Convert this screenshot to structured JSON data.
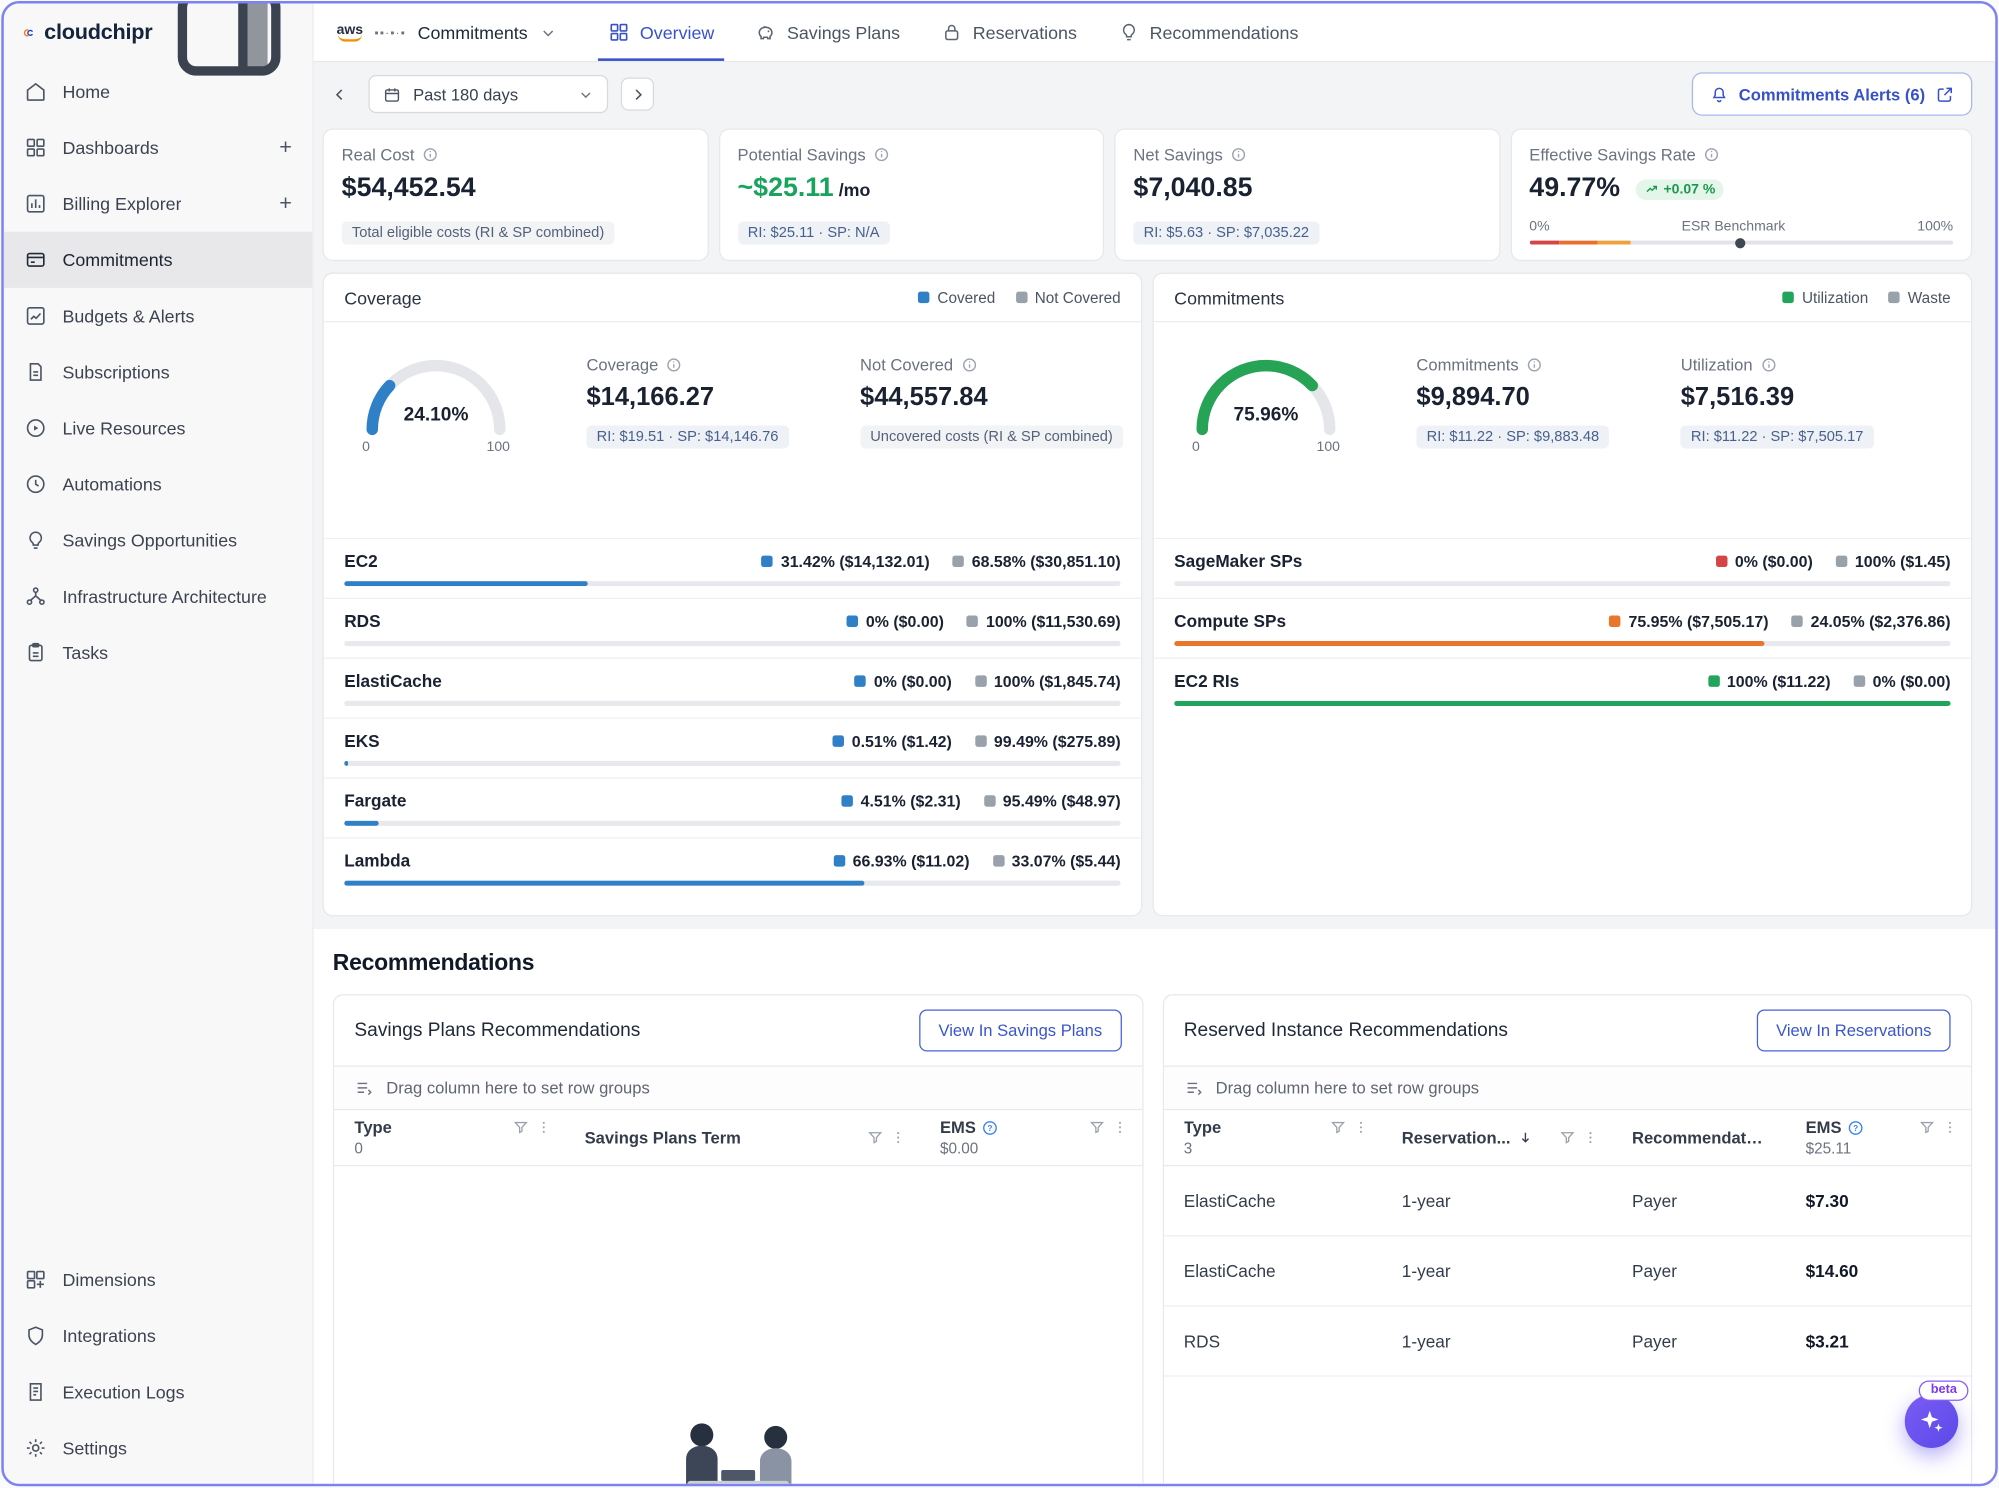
{
  "brand": {
    "name": "cloudchipr"
  },
  "sidebar": {
    "items": [
      {
        "label": "Home",
        "icon": "home"
      },
      {
        "label": "Dashboards",
        "icon": "dashboards",
        "trailing": "+"
      },
      {
        "label": "Billing Explorer",
        "icon": "billing",
        "trailing": "+"
      },
      {
        "label": "Commitments",
        "icon": "commitments",
        "active": true
      },
      {
        "label": "Budgets & Alerts",
        "icon": "budgets"
      },
      {
        "label": "Subscriptions",
        "icon": "subscriptions"
      },
      {
        "label": "Live Resources",
        "icon": "live"
      },
      {
        "label": "Automations",
        "icon": "automations"
      },
      {
        "label": "Savings Opportunities",
        "icon": "savings"
      },
      {
        "label": "Infrastructure Architecture",
        "icon": "infra"
      },
      {
        "label": "Tasks",
        "icon": "tasks"
      }
    ],
    "bottom_items": [
      {
        "label": "Dimensions",
        "icon": "dimensions"
      },
      {
        "label": "Integrations",
        "icon": "integrations"
      },
      {
        "label": "Execution Logs",
        "icon": "logs"
      },
      {
        "label": "Settings",
        "icon": "settings"
      }
    ]
  },
  "topbar": {
    "aws_label": "aws",
    "account_masked": "▪▪·▪·▪",
    "scope": "Commitments",
    "tabs": [
      {
        "label": "Overview",
        "icon": "overview",
        "active": true
      },
      {
        "label": "Savings Plans",
        "icon": "savings-plans"
      },
      {
        "label": "Reservations",
        "icon": "reservations"
      },
      {
        "label": "Recommendations",
        "icon": "recommendations"
      }
    ]
  },
  "toolbar": {
    "date_range": "Past 180 days",
    "alerts_label": "Commitments Alerts (6)"
  },
  "metrics": [
    {
      "label": "Real Cost",
      "value": "$54,452.54",
      "badge": "Total eligible costs (RI & SP combined)"
    },
    {
      "label": "Potential Savings",
      "value": "~$25.11",
      "value_suffix": "/mo",
      "value_color": "#18a45c",
      "badge": "RI: $25.11 · SP: N/A"
    },
    {
      "label": "Net Savings",
      "value": "$7,040.85",
      "badge": "RI: $5.63 · SP: $7,035.22"
    },
    {
      "label": "Effective Savings Rate",
      "value": "49.77%",
      "delta": "+0.07 %",
      "scale_min": "0%",
      "benchmark_label": "ESR Benchmark",
      "scale_max": "100%",
      "bar_segments": [
        {
          "color": "#d64545",
          "pct": 7
        },
        {
          "color": "#e8702e",
          "pct": 9
        },
        {
          "color": "#eda23e",
          "pct": 8
        }
      ],
      "marker_pct": 49.77
    }
  ],
  "coverage_panel": {
    "title": "Coverage",
    "legend": [
      {
        "label": "Covered",
        "color": "#2f80c7"
      },
      {
        "label": "Not Covered",
        "color": "#99a1ab"
      }
    ],
    "gauge": {
      "pct": 24.1,
      "display": "24.10%",
      "min": "0",
      "max": "100",
      "color": "#2f80c7"
    },
    "stats": [
      {
        "label": "Coverage",
        "value": "$14,166.27",
        "chip": "RI: $19.51 · SP: $14,146.76"
      },
      {
        "label": "Not Covered",
        "value": "$44,557.84",
        "chip": "Uncovered costs (RI & SP combined)"
      }
    ],
    "rows": [
      {
        "name": "EC2",
        "a": "31.42% ($14,132.01)",
        "b": "68.58% ($30,851.10)",
        "pct": 31.42,
        "color": "#2f80c7"
      },
      {
        "name": "RDS",
        "a": "0% ($0.00)",
        "b": "100% ($11,530.69)",
        "pct": 0,
        "color": "#2f80c7"
      },
      {
        "name": "ElastiCache",
        "a": "0% ($0.00)",
        "b": "100% ($1,845.74)",
        "pct": 0,
        "color": "#2f80c7"
      },
      {
        "name": "EKS",
        "a": "0.51% ($1.42)",
        "b": "99.49% ($275.89)",
        "pct": 0.51,
        "color": "#2f80c7"
      },
      {
        "name": "Fargate",
        "a": "4.51% ($2.31)",
        "b": "95.49% ($48.97)",
        "pct": 4.51,
        "color": "#2f80c7"
      },
      {
        "name": "Lambda",
        "a": "66.93% ($11.02)",
        "b": "33.07% ($5.44)",
        "pct": 66.93,
        "color": "#2f80c7"
      }
    ]
  },
  "commitments_panel": {
    "title": "Commitments",
    "legend": [
      {
        "label": "Utilization",
        "color": "#22a45c"
      },
      {
        "label": "Waste",
        "color": "#99a1ab"
      }
    ],
    "gauge": {
      "pct": 75.96,
      "display": "75.96%",
      "min": "0",
      "max": "100",
      "color": "#27a356"
    },
    "stats": [
      {
        "label": "Commitments",
        "value": "$9,894.70",
        "chip": "RI: $11.22 · SP: $9,883.48"
      },
      {
        "label": "Utilization",
        "value": "$7,516.39",
        "chip": "RI: $11.22 · SP: $7,505.17"
      }
    ],
    "rows": [
      {
        "name": "SageMaker SPs",
        "a": "0% ($0.00)",
        "b": "100% ($1.45)",
        "pct": 0,
        "color": "#d64545"
      },
      {
        "name": "Compute SPs",
        "a": "75.95% ($7,505.17)",
        "b": "24.05% ($2,376.86)",
        "pct": 75.95,
        "color": "#e8772e"
      },
      {
        "name": "EC2 RIs",
        "a": "100% ($11.22)",
        "b": "0% ($0.00)",
        "pct": 100,
        "color": "#22a45c"
      }
    ]
  },
  "recommendations": {
    "title": "Recommendations",
    "left": {
      "title": "Savings Plans Recommendations",
      "button": "View In Savings Plans",
      "drag_hint": "Drag column here to set row groups",
      "columns": [
        {
          "label": "Type",
          "sub": "0"
        },
        {
          "label": "Savings Plans Term"
        },
        {
          "label": "EMS",
          "sub": "$0.00",
          "help": true
        }
      ],
      "rows": []
    },
    "right": {
      "title": "Reserved Instance Recommendations",
      "button": "View In Reservations",
      "drag_hint": "Drag column here to set row groups",
      "columns": [
        {
          "label": "Type",
          "sub": "3"
        },
        {
          "label": "Reservation...",
          "sorted": true
        },
        {
          "label": "Recommendation L...",
          "hide_icons": true
        },
        {
          "label": "EMS",
          "sub": "$25.11",
          "help": true
        }
      ],
      "rows": [
        {
          "type": "ElastiCache",
          "term": "1-year",
          "rec": "Payer",
          "ems": "$7.30"
        },
        {
          "type": "ElastiCache",
          "term": "1-year",
          "rec": "Payer",
          "ems": "$14.60"
        },
        {
          "type": "RDS",
          "term": "1-year",
          "rec": "Payer",
          "ems": "$3.21"
        }
      ]
    },
    "beta_badge": "beta"
  }
}
